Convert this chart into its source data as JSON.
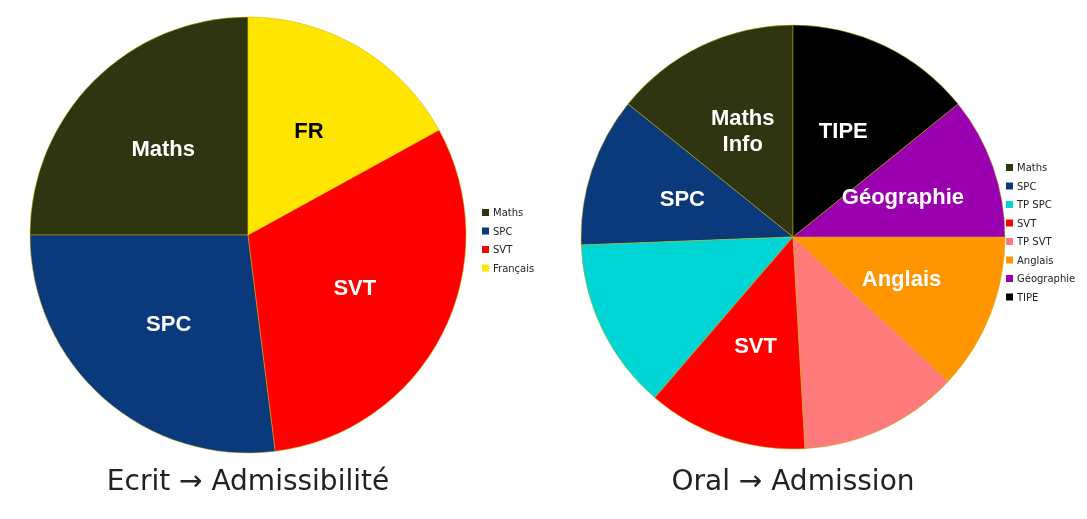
{
  "chart_data": [
    {
      "type": "pie",
      "title": "Ecrit → Admissibilité",
      "categories": [
        "Maths",
        "SPC",
        "SVT",
        "Français"
      ],
      "values": [
        25,
        27,
        31,
        17
      ],
      "colors": [
        "#2e3510",
        "#0b3a7c",
        "#ff0000",
        "#ffe500"
      ],
      "legend": "right",
      "annotations": [
        {
          "text": "Maths",
          "x": "Maths"
        },
        {
          "text": "SPC",
          "x": "SPC"
        },
        {
          "text": "SVT",
          "x": "SVT"
        },
        {
          "text": "FR",
          "x": "Français"
        }
      ]
    },
    {
      "type": "pie",
      "title": "Oral → Admission",
      "categories": [
        "Maths",
        "SPC",
        "TP SPC",
        "SVT",
        "TP SVT",
        "Anglais",
        "Géographie",
        "TIPE"
      ],
      "values": [
        14.2,
        11.4,
        13.1,
        12.2,
        12.2,
        11.9,
        10.8,
        14.2
      ],
      "colors": [
        "#2e3510",
        "#0b3a7c",
        "#00d5d5",
        "#ff0000",
        "#ff7b7b",
        "#ff9500",
        "#9a00b0",
        "#000000"
      ],
      "legend": "right",
      "annotations": [
        {
          "text": "Maths\nInfo",
          "x": "Maths"
        },
        {
          "text": "SPC",
          "x": "SPC"
        },
        {
          "text": "SVT",
          "x": "SVT"
        },
        {
          "text": "Anglais",
          "x": "Anglais"
        },
        {
          "text": "Géographie",
          "x": "Géographie"
        },
        {
          "text": "TIPE",
          "x": "TIPE"
        }
      ]
    }
  ]
}
